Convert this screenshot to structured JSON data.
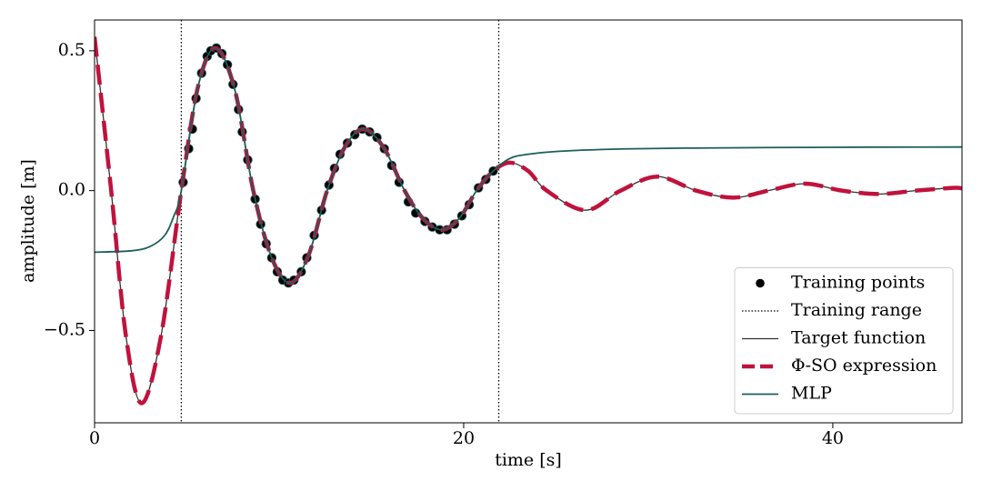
{
  "chart_data": {
    "type": "line",
    "x_label": "time [s]",
    "y_label": "amplitude [m]",
    "xlim": [
      0,
      47
    ],
    "ylim": [
      -0.83,
      0.61
    ],
    "xticks": [
      0,
      20,
      40
    ],
    "yticks": [
      {
        "value": -0.5,
        "label": "−0.5"
      },
      {
        "value": 0,
        "label": "0.0"
      },
      {
        "value": 0.5,
        "label": "0.5"
      }
    ],
    "legend": "lower right",
    "series": [
      {
        "name": "Training points",
        "type": "scatter",
        "color": "#000000",
        "x": [
          4.8,
          5.1,
          5.3,
          5.5,
          5.8,
          6.1,
          6.3,
          6.6,
          6.9,
          7.2,
          7.5,
          7.8,
          8.0,
          8.3,
          8.7,
          9.0,
          9.3,
          9.6,
          9.9,
          10.2,
          10.5,
          10.8,
          11.2,
          11.5,
          11.9,
          12.3,
          12.7,
          13.0,
          13.3,
          13.7,
          14.1,
          14.5,
          14.9,
          15.3,
          15.7,
          16.1,
          16.5,
          17.0,
          17.4,
          17.9,
          18.3,
          18.7,
          19.1,
          19.5,
          19.9,
          20.3,
          20.8,
          21.2,
          21.6
        ],
        "values": [
          0.03,
          0.15,
          0.22,
          0.33,
          0.42,
          0.48,
          0.5,
          0.51,
          0.49,
          0.45,
          0.38,
          0.29,
          0.21,
          0.11,
          -0.03,
          -0.12,
          -0.19,
          -0.24,
          -0.29,
          -0.32,
          -0.33,
          -0.32,
          -0.29,
          -0.24,
          -0.16,
          -0.07,
          0.02,
          0.08,
          0.13,
          0.17,
          0.2,
          0.22,
          0.21,
          0.19,
          0.15,
          0.09,
          0.03,
          -0.04,
          -0.08,
          -0.11,
          -0.13,
          -0.14,
          -0.14,
          -0.12,
          -0.09,
          -0.05,
          0.01,
          0.04,
          0.07
        ]
      },
      {
        "name": "Training range",
        "type": "vlines",
        "color": "#000000",
        "x": [
          4.7,
          21.9
        ]
      },
      {
        "name": "Target function",
        "type": "line",
        "color": "#333333",
        "x": [
          0,
          0.9,
          1.7,
          2.55,
          3.6,
          4.7,
          5.6,
          6.55,
          7.6,
          8.6,
          9.6,
          10.6,
          11.6,
          12.6,
          13.6,
          14.6,
          15.7,
          16.8,
          17.8,
          18.8,
          19.75,
          20.7,
          21.6,
          22.5,
          23.5,
          24.5,
          26.6,
          28.5,
          30.5,
          32.6,
          34.6,
          36.5,
          38.5,
          40.5,
          42.5,
          44.5,
          46.5,
          47
        ],
        "values": [
          0.55,
          0,
          -0.52,
          -0.76,
          -0.52,
          0,
          0.37,
          0.51,
          0.36,
          0,
          -0.24,
          -0.33,
          -0.23,
          0,
          0.16,
          0.22,
          0.15,
          0,
          -0.1,
          -0.14,
          -0.1,
          0,
          0.07,
          0.1,
          0.07,
          0,
          -0.07,
          0,
          0.05,
          0,
          -0.025,
          0,
          0.025,
          0,
          -0.012,
          0,
          0.01,
          0.008
        ]
      },
      {
        "name": "Φ-SO expression",
        "type": "dashed",
        "color": "#c0123c",
        "x": [
          0,
          0.9,
          1.7,
          2.55,
          3.6,
          4.7,
          5.6,
          6.55,
          7.6,
          8.6,
          9.6,
          10.6,
          11.6,
          12.6,
          13.6,
          14.6,
          15.7,
          16.8,
          17.8,
          18.8,
          19.75,
          20.7,
          21.6,
          22.5,
          23.5,
          24.5,
          26.6,
          28.5,
          30.5,
          32.6,
          34.6,
          36.5,
          38.5,
          40.5,
          42.5,
          44.5,
          46.5,
          47
        ],
        "values": [
          0.55,
          0,
          -0.52,
          -0.76,
          -0.52,
          0,
          0.37,
          0.51,
          0.36,
          0,
          -0.24,
          -0.33,
          -0.23,
          0,
          0.16,
          0.22,
          0.15,
          0,
          -0.1,
          -0.14,
          -0.1,
          0,
          0.07,
          0.1,
          0.07,
          0,
          -0.07,
          0,
          0.05,
          0,
          -0.025,
          0,
          0.025,
          0,
          -0.012,
          0,
          0.01,
          0.008
        ]
      },
      {
        "name": "MLP",
        "type": "line",
        "color": "#1b5e5a",
        "x": [
          0,
          2,
          3,
          3.8,
          4.3,
          4.7,
          5.6,
          6.55,
          7.6,
          8.6,
          9.6,
          10.6,
          11.6,
          12.6,
          13.6,
          14.6,
          15.7,
          16.8,
          17.8,
          18.8,
          19.75,
          20.7,
          21.6,
          22.5,
          23.5,
          25,
          28,
          32,
          40,
          47
        ],
        "values": [
          -0.22,
          -0.215,
          -0.2,
          -0.16,
          -0.09,
          0,
          0.37,
          0.51,
          0.36,
          0,
          -0.24,
          -0.33,
          -0.23,
          0,
          0.16,
          0.22,
          0.15,
          0,
          -0.1,
          -0.14,
          -0.1,
          0,
          0.07,
          0.115,
          0.13,
          0.14,
          0.148,
          0.152,
          0.155,
          0.156
        ]
      }
    ]
  }
}
